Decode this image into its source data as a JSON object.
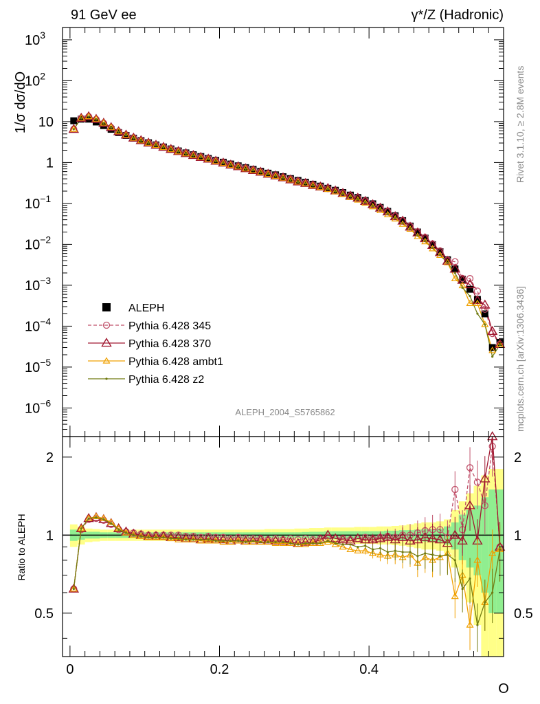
{
  "header": {
    "left": "91 GeV ee",
    "right": "γ*/Z (Hadronic)"
  },
  "side_labels": {
    "rivet": "Rivet 3.1.10, ≥ 2.8M events",
    "mcplots": "mcplots.cern.ch [arXiv:1306.3436]"
  },
  "watermark": "ALEPH_2004_S5765862",
  "colors": {
    "aleph": "#000000",
    "p345": "#c0506a",
    "p370": "#a01830",
    "ambt1": "#f0a000",
    "z2": "#707a10",
    "band_inner": "#90ee90",
    "band_outer": "#ffff88"
  },
  "chart_data": [
    {
      "type": "scatter",
      "panel": "main",
      "ylabel": "1/σ dσ/dO",
      "yscale": "log",
      "ylim": [
        2e-07,
        2000
      ],
      "xlim": [
        -0.01,
        0.58
      ],
      "yticks": [
        {
          "v": 1e-06,
          "base": "10",
          "exp": "−6"
        },
        {
          "v": 1e-05,
          "base": "10",
          "exp": "−5"
        },
        {
          "v": 0.0001,
          "base": "10",
          "exp": "−4"
        },
        {
          "v": 0.001,
          "base": "10",
          "exp": "−3"
        },
        {
          "v": 0.01,
          "base": "10",
          "exp": "−2"
        },
        {
          "v": 0.1,
          "base": "10",
          "exp": "−1"
        },
        {
          "v": 1,
          "base": "1",
          "exp": ""
        },
        {
          "v": 10,
          "base": "10",
          "exp": ""
        },
        {
          "v": 100,
          "base": "10",
          "exp": "2"
        },
        {
          "v": 1000,
          "base": "10",
          "exp": "3"
        }
      ],
      "legend": [
        {
          "label": "ALEPH",
          "style": "data"
        },
        {
          "label": "Pythia 6.428 345",
          "style": "p345"
        },
        {
          "label": "Pythia 6.428 370",
          "style": "p370"
        },
        {
          "label": "Pythia 6.428 ambt1",
          "style": "ambt1"
        },
        {
          "label": "Pythia 6.428 z2",
          "style": "z2"
        }
      ],
      "x": [
        0.005,
        0.015,
        0.025,
        0.035,
        0.045,
        0.055,
        0.065,
        0.075,
        0.085,
        0.095,
        0.105,
        0.115,
        0.125,
        0.135,
        0.145,
        0.155,
        0.165,
        0.175,
        0.185,
        0.195,
        0.205,
        0.215,
        0.225,
        0.235,
        0.245,
        0.255,
        0.265,
        0.275,
        0.285,
        0.295,
        0.305,
        0.315,
        0.325,
        0.335,
        0.345,
        0.355,
        0.365,
        0.375,
        0.385,
        0.395,
        0.405,
        0.415,
        0.425,
        0.435,
        0.445,
        0.455,
        0.465,
        0.475,
        0.485,
        0.495,
        0.505,
        0.515,
        0.525,
        0.535,
        0.545,
        0.555,
        0.565,
        0.575
      ],
      "aleph": [
        10.5,
        11.5,
        11.5,
        9.8,
        8.0,
        6.5,
        5.4,
        4.6,
        3.95,
        3.45,
        3.05,
        2.7,
        2.4,
        2.15,
        1.92,
        1.72,
        1.55,
        1.4,
        1.26,
        1.13,
        1.02,
        0.92,
        0.83,
        0.75,
        0.68,
        0.61,
        0.55,
        0.5,
        0.45,
        0.405,
        0.365,
        0.33,
        0.295,
        0.265,
        0.235,
        0.21,
        0.185,
        0.16,
        0.14,
        0.118,
        0.098,
        0.08,
        0.064,
        0.05,
        0.038,
        0.028,
        0.02,
        0.0142,
        0.0098,
        0.0066,
        0.0042,
        0.0025,
        0.0014,
        0.0008,
        0.00045,
        0.0002,
        3e-05,
        4e-05
      ],
      "ratio_345": [
        0.62,
        1.05,
        1.15,
        1.16,
        1.14,
        1.1,
        1.05,
        1.03,
        1.02,
        1.01,
        1.0,
        1.0,
        1.0,
        1.0,
        1.0,
        0.99,
        0.99,
        0.98,
        0.99,
        0.98,
        0.98,
        0.97,
        0.98,
        0.97,
        0.97,
        0.97,
        0.96,
        0.97,
        0.96,
        0.97,
        0.96,
        0.97,
        0.96,
        0.97,
        0.98,
        0.97,
        0.97,
        0.96,
        0.97,
        0.98,
        0.97,
        0.98,
        0.99,
        0.98,
        1.0,
        1.0,
        1.02,
        1.04,
        1.05,
        1.05,
        0.98,
        1.5,
        1.05,
        1.82,
        1.6,
        1.3,
        2.2,
        0.9
      ],
      "ratio_370": [
        0.62,
        1.06,
        1.16,
        1.17,
        1.15,
        1.11,
        1.06,
        1.03,
        1.01,
        1.0,
        0.99,
        0.99,
        0.99,
        0.98,
        0.98,
        0.97,
        0.97,
        0.96,
        0.97,
        0.96,
        0.96,
        0.95,
        0.96,
        0.95,
        0.95,
        0.96,
        0.95,
        0.95,
        0.95,
        0.94,
        0.93,
        0.94,
        0.94,
        0.96,
        1.0,
        0.97,
        0.96,
        0.95,
        0.97,
        0.96,
        0.96,
        0.97,
        0.98,
        0.96,
        0.98,
        0.95,
        0.96,
        0.98,
        0.97,
        0.96,
        0.93,
        1.0,
        0.95,
        1.3,
        0.95,
        1.65,
        2.5,
        0.9
      ],
      "ratio_ambt1": [
        0.62,
        1.06,
        1.16,
        1.18,
        1.16,
        1.12,
        1.06,
        1.02,
        1.0,
        0.99,
        0.98,
        0.98,
        0.98,
        0.97,
        0.96,
        0.96,
        0.96,
        0.95,
        0.95,
        0.95,
        0.94,
        0.94,
        0.95,
        0.94,
        0.94,
        0.94,
        0.94,
        0.93,
        0.93,
        0.93,
        0.92,
        0.92,
        0.93,
        0.93,
        0.94,
        0.92,
        0.9,
        0.88,
        0.87,
        0.87,
        0.85,
        0.84,
        0.83,
        0.84,
        0.82,
        0.84,
        0.78,
        0.82,
        0.8,
        0.82,
        0.85,
        0.58,
        0.7,
        0.45,
        0.8,
        0.55,
        0.85,
        0.88
      ],
      "ratio_z2": [
        0.62,
        1.06,
        1.16,
        1.17,
        1.15,
        1.11,
        1.05,
        1.02,
        1.0,
        0.99,
        0.98,
        0.98,
        0.98,
        0.97,
        0.97,
        0.96,
        0.96,
        0.96,
        0.96,
        0.95,
        0.95,
        0.95,
        0.95,
        0.94,
        0.95,
        0.94,
        0.94,
        0.94,
        0.94,
        0.93,
        0.92,
        0.93,
        0.93,
        0.93,
        0.95,
        0.93,
        0.92,
        0.92,
        0.9,
        0.91,
        0.88,
        0.89,
        0.86,
        0.87,
        0.86,
        0.86,
        0.83,
        0.85,
        0.84,
        0.83,
        0.84,
        0.8,
        0.62,
        0.68,
        0.45,
        0.55,
        0.6,
        0.88
      ],
      "band_inner": [
        0.05,
        0.04,
        0.03,
        0.03,
        0.025,
        0.025,
        0.025,
        0.025,
        0.025,
        0.025,
        0.025,
        0.025,
        0.025,
        0.025,
        0.025,
        0.025,
        0.025,
        0.025,
        0.025,
        0.025,
        0.025,
        0.025,
        0.025,
        0.025,
        0.025,
        0.025,
        0.025,
        0.025,
        0.025,
        0.025,
        0.025,
        0.028,
        0.03,
        0.03,
        0.035,
        0.035,
        0.035,
        0.035,
        0.035,
        0.035,
        0.035,
        0.035,
        0.04,
        0.04,
        0.045,
        0.045,
        0.05,
        0.055,
        0.055,
        0.06,
        0.08,
        0.12,
        0.2,
        0.25,
        0.3,
        0.4,
        0.5,
        0.5
      ],
      "band_outer": [
        0.1,
        0.08,
        0.06,
        0.055,
        0.05,
        0.05,
        0.05,
        0.05,
        0.05,
        0.05,
        0.05,
        0.05,
        0.05,
        0.05,
        0.05,
        0.05,
        0.05,
        0.05,
        0.05,
        0.05,
        0.05,
        0.05,
        0.05,
        0.05,
        0.05,
        0.05,
        0.055,
        0.055,
        0.055,
        0.055,
        0.06,
        0.06,
        0.065,
        0.065,
        0.07,
        0.07,
        0.07,
        0.07,
        0.075,
        0.075,
        0.075,
        0.08,
        0.08,
        0.085,
        0.09,
        0.1,
        0.11,
        0.12,
        0.12,
        0.13,
        0.15,
        0.25,
        0.35,
        0.45,
        0.55,
        0.7,
        0.8,
        0.8
      ]
    },
    {
      "type": "line",
      "panel": "ratio",
      "ylabel": "Ratio to ALEPH",
      "xlabel": "O",
      "yscale": "log",
      "ylim": [
        0.34,
        2.4
      ],
      "xlim": [
        -0.01,
        0.58
      ],
      "yticks": [
        0.5,
        1,
        2
      ],
      "ytick_labels": [
        "0.5",
        "1",
        "2"
      ],
      "xticks": [
        0,
        0.2,
        0.4
      ],
      "xtick_labels": [
        "0",
        "0.2",
        "0.4"
      ]
    }
  ]
}
